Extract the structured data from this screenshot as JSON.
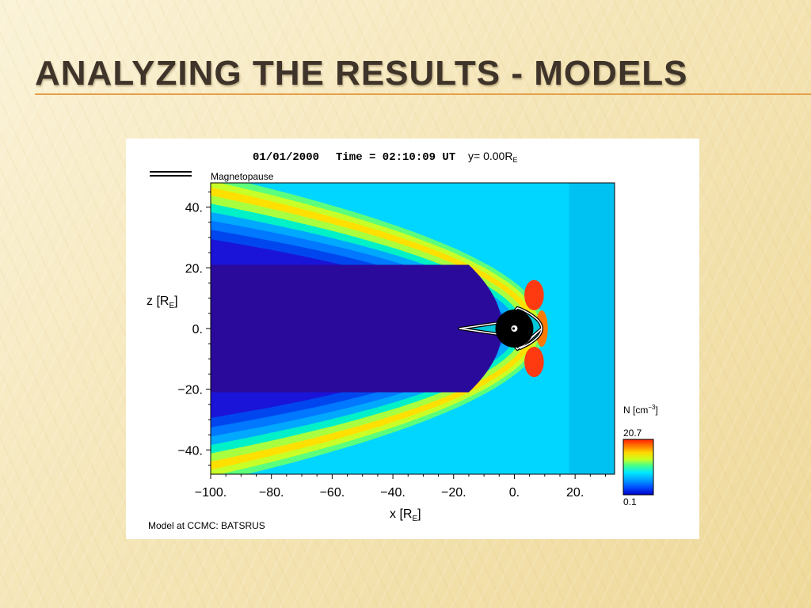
{
  "slide": {
    "title": "ANALYZING THE RESULTS - MODELS"
  },
  "chart_data": {
    "type": "heatmap",
    "title": {
      "date": "01/01/2000",
      "time_label": "Time = 02:10:09 UT",
      "slice_label": "y= 0.00R",
      "slice_subscript": "E"
    },
    "legend": {
      "line_label": "Magnetopause"
    },
    "xlabel": {
      "main": "x [R",
      "sub": "E",
      "close": "]"
    },
    "ylabel": {
      "main": "z [R",
      "sub": "E",
      "close": "]"
    },
    "xlim": [
      -100,
      33
    ],
    "ylim": [
      -48,
      48
    ],
    "x_ticks": [
      -100,
      -80,
      -60,
      -40,
      -20,
      0,
      20
    ],
    "x_tick_labels": [
      "−100.",
      "−80.",
      "−60.",
      "−40.",
      "−20.",
      "0.",
      "20."
    ],
    "y_ticks": [
      40,
      20,
      0,
      -20,
      -40
    ],
    "y_tick_labels": [
      "40.",
      "20.",
      "0.",
      "−20.",
      "−40."
    ],
    "colorbar": {
      "label": "N [cm",
      "label_sup": "−3",
      "label_close": "]",
      "max_label": "20.7",
      "min_label": "0.1",
      "range": [
        0.1,
        20.7
      ],
      "colors": [
        "#0000c8",
        "#0050ff",
        "#00a8ff",
        "#00e8ff",
        "#40ff90",
        "#c8ff20",
        "#ffd800",
        "#ff7a00",
        "#ff2000"
      ]
    },
    "bow_shock_nose_x": 10,
    "magnetopause_nose_x": 9,
    "earth_radius": 5,
    "solar_wind_boundary_x": 18,
    "credit": "Model at CCMC: BATSRUS"
  }
}
